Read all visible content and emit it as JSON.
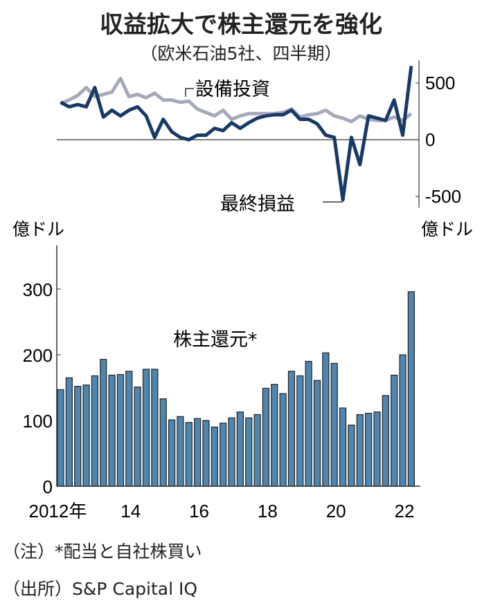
{
  "title": "収益拡大で株主還元を強化",
  "subtitle": "（欧米石油5社、四半期）",
  "notes": [
    "（注）*配当と自社株買い",
    "（出所）S&P Capital IQ"
  ],
  "chart_data": [
    {
      "type": "line",
      "unit_label": "億ドル",
      "yaxis_position": "right",
      "ylim": [
        -600,
        700
      ],
      "yticks": [
        {
          "value": 500,
          "label": "500"
        },
        {
          "value": 0,
          "label": "0"
        },
        {
          "value": -500,
          "label": "-500"
        }
      ],
      "series": [
        {
          "name": "設備投資",
          "color": "#a6a9ba",
          "values": [
            320,
            350,
            390,
            460,
            380,
            400,
            420,
            540,
            380,
            400,
            370,
            410,
            350,
            350,
            330,
            340,
            270,
            240,
            210,
            260,
            180,
            210,
            230,
            230,
            230,
            230,
            240,
            270,
            200,
            220,
            230,
            260,
            210,
            190,
            160,
            210,
            180,
            170,
            170,
            200,
            170,
            230
          ]
        },
        {
          "name": "最終損益",
          "color": "#173a66",
          "values": [
            330,
            290,
            310,
            290,
            460,
            200,
            260,
            210,
            260,
            290,
            210,
            20,
            180,
            70,
            20,
            0,
            40,
            40,
            100,
            80,
            150,
            100,
            150,
            190,
            210,
            220,
            220,
            260,
            180,
            180,
            140,
            40,
            20,
            -530,
            20,
            -220,
            210,
            190,
            170,
            350,
            40,
            650
          ]
        }
      ]
    },
    {
      "type": "bar",
      "series_label": "株主還元*",
      "unit_label": "億ドル",
      "yaxis_position": "left",
      "ylim": [
        0,
        360
      ],
      "yticks": [
        {
          "value": 0,
          "label": "0"
        },
        {
          "value": 100,
          "label": "100"
        },
        {
          "value": 200,
          "label": "200"
        },
        {
          "value": 300,
          "label": "300"
        }
      ],
      "xticks": [
        {
          "index": 0,
          "label": "2012年"
        },
        {
          "index": 8,
          "label": "14"
        },
        {
          "index": 16,
          "label": "16"
        },
        {
          "index": 24,
          "label": "18"
        },
        {
          "index": 32,
          "label": "20"
        },
        {
          "index": 40,
          "label": "22"
        }
      ],
      "color": "#4e86b0",
      "values": [
        147,
        165,
        152,
        154,
        168,
        193,
        169,
        170,
        175,
        151,
        178,
        178,
        133,
        101,
        106,
        97,
        103,
        100,
        90,
        96,
        104,
        113,
        104,
        109,
        149,
        155,
        141,
        175,
        168,
        190,
        161,
        203,
        187,
        119,
        93,
        109,
        111,
        113,
        138,
        169,
        200,
        296
      ]
    }
  ]
}
